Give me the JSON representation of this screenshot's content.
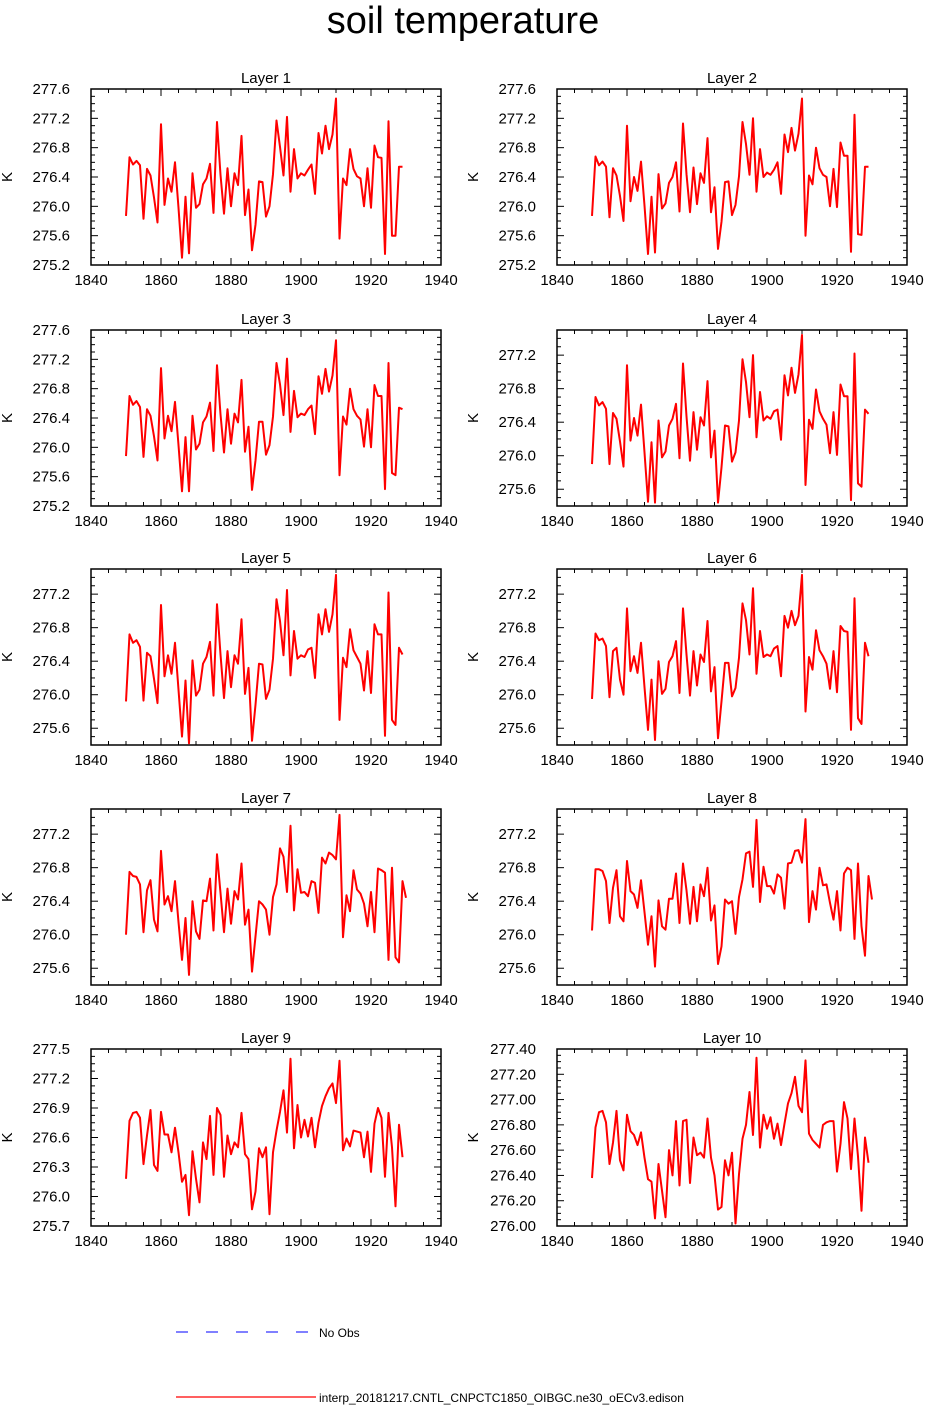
{
  "title": "soil temperature",
  "legend": {
    "obs_label": "No Obs",
    "obs_color": "#0000ff",
    "model_label": "interp_20181217.CNTL_CNPCTC1850_OIBGC.ne30_oECv3.edison",
    "model_color": "#ff0000"
  },
  "chart_data": [
    {
      "type": "line",
      "title": "Layer 1",
      "ylabel": "K",
      "xlim": [
        1840,
        1940
      ],
      "ylim": [
        275.2,
        277.6
      ],
      "xticks": [
        1840,
        1860,
        1880,
        1900,
        1920,
        1940
      ],
      "yticks": [
        "275.2",
        "275.6",
        "276.0",
        "276.4",
        "276.8",
        "277.2",
        "277.6"
      ],
      "x_start": 1850,
      "values": [
        275.87,
        276.67,
        276.57,
        276.62,
        276.56,
        275.83,
        276.51,
        276.42,
        276.12,
        275.78,
        277.12,
        276.02,
        276.38,
        276.2,
        276.6,
        275.98,
        275.3,
        276.13,
        275.36,
        276.45,
        275.98,
        276.03,
        276.3,
        276.38,
        276.58,
        275.91,
        277.15,
        276.43,
        275.9,
        276.52,
        276.0,
        276.45,
        276.29,
        276.96,
        275.88,
        276.23,
        275.4,
        275.75,
        276.34,
        276.33,
        275.86,
        276.0,
        276.44,
        277.17,
        276.81,
        276.42,
        277.22,
        276.2,
        276.78,
        276.38,
        276.45,
        276.42,
        276.5,
        276.57,
        276.17,
        277.0,
        276.72,
        277.1,
        276.78,
        276.98,
        277.47,
        275.56,
        276.38,
        276.29,
        276.78,
        276.51,
        276.41,
        276.38,
        276.0,
        276.52,
        275.98,
        276.83,
        276.67,
        276.66,
        275.35,
        277.16,
        275.6,
        275.6,
        276.54,
        276.54
      ]
    },
    {
      "type": "line",
      "title": "Layer 2",
      "ylabel": "K",
      "xlim": [
        1840,
        1940
      ],
      "ylim": [
        275.2,
        277.6
      ],
      "xticks": [
        1840,
        1860,
        1880,
        1900,
        1920,
        1940
      ],
      "yticks": [
        "275.2",
        "275.6",
        "276.0",
        "276.4",
        "276.8",
        "277.2",
        "277.6"
      ],
      "x_start": 1850,
      "values": [
        275.87,
        276.68,
        276.56,
        276.61,
        276.54,
        275.85,
        276.52,
        276.42,
        276.14,
        275.8,
        277.1,
        276.07,
        276.4,
        276.21,
        276.61,
        276.01,
        275.35,
        276.13,
        275.37,
        276.44,
        275.97,
        276.04,
        276.32,
        276.4,
        276.6,
        275.93,
        277.13,
        276.44,
        275.92,
        276.53,
        276.03,
        276.45,
        276.32,
        276.93,
        275.92,
        276.26,
        275.42,
        275.79,
        276.33,
        276.34,
        275.88,
        276.02,
        276.41,
        277.15,
        276.85,
        276.43,
        277.2,
        276.2,
        276.78,
        276.4,
        276.46,
        276.43,
        276.5,
        276.6,
        276.17,
        276.98,
        276.74,
        277.07,
        276.76,
        276.99,
        277.47,
        275.6,
        276.42,
        276.3,
        276.8,
        276.52,
        276.43,
        276.4,
        276.0,
        276.51,
        275.99,
        276.87,
        276.69,
        276.69,
        275.38,
        277.25,
        275.62,
        275.61,
        276.54,
        276.54
      ]
    },
    {
      "type": "line",
      "title": "Layer 3",
      "ylabel": "K",
      "xlim": [
        1840,
        1940
      ],
      "ylim": [
        275.2,
        277.6
      ],
      "xticks": [
        1840,
        1860,
        1880,
        1900,
        1920,
        1940
      ],
      "yticks": [
        "275.2",
        "275.6",
        "276.0",
        "276.4",
        "276.8",
        "277.2",
        "277.6"
      ],
      "x_start": 1850,
      "values": [
        275.88,
        276.7,
        276.58,
        276.63,
        276.55,
        275.87,
        276.52,
        276.43,
        276.15,
        275.82,
        277.08,
        276.12,
        276.43,
        276.22,
        276.62,
        276.03,
        275.4,
        276.14,
        275.4,
        276.43,
        275.97,
        276.05,
        276.34,
        276.42,
        276.61,
        275.95,
        277.12,
        276.45,
        275.93,
        276.52,
        276.05,
        276.46,
        276.34,
        276.92,
        275.94,
        276.28,
        275.42,
        275.82,
        276.35,
        276.35,
        275.9,
        276.03,
        276.42,
        277.15,
        276.86,
        276.44,
        277.21,
        276.21,
        276.77,
        276.41,
        276.46,
        276.44,
        276.52,
        276.57,
        276.18,
        276.97,
        276.73,
        277.07,
        276.76,
        276.98,
        277.46,
        275.62,
        276.42,
        276.31,
        276.8,
        276.52,
        276.43,
        276.38,
        276.01,
        276.52,
        276.0,
        276.85,
        276.7,
        276.7,
        275.43,
        277.15,
        275.65,
        275.62,
        276.54,
        276.52
      ]
    },
    {
      "type": "line",
      "title": "Layer 4",
      "ylabel": "K",
      "xlim": [
        1840,
        1940
      ],
      "ylim": [
        275.4,
        277.5
      ],
      "xticks": [
        1840,
        1860,
        1880,
        1900,
        1920,
        1940
      ],
      "yticks": [
        "275.6",
        "276.0",
        "276.4",
        "276.8",
        "277.2"
      ],
      "x_start": 1850,
      "values": [
        275.9,
        276.7,
        276.6,
        276.64,
        276.56,
        275.9,
        276.51,
        276.44,
        276.17,
        275.87,
        277.08,
        276.18,
        276.45,
        276.24,
        276.61,
        276.04,
        275.45,
        276.16,
        275.44,
        276.42,
        275.98,
        276.05,
        276.36,
        276.44,
        276.62,
        275.97,
        277.1,
        276.47,
        275.94,
        276.52,
        276.07,
        276.46,
        276.36,
        276.89,
        275.98,
        276.3,
        275.44,
        275.86,
        276.36,
        276.35,
        275.93,
        276.04,
        276.42,
        277.15,
        276.88,
        276.46,
        277.2,
        276.22,
        276.76,
        276.42,
        276.47,
        276.44,
        276.53,
        276.55,
        276.19,
        276.96,
        276.72,
        277.05,
        276.75,
        276.97,
        277.44,
        275.65,
        276.43,
        276.32,
        276.79,
        276.53,
        276.44,
        276.37,
        276.03,
        276.52,
        276.01,
        276.85,
        276.71,
        276.71,
        275.47,
        277.22,
        275.67,
        275.63,
        276.55,
        276.5
      ]
    },
    {
      "type": "line",
      "title": "Layer 5",
      "ylabel": "K",
      "xlim": [
        1840,
        1940
      ],
      "ylim": [
        275.4,
        277.5
      ],
      "xticks": [
        1840,
        1860,
        1880,
        1900,
        1920,
        1940
      ],
      "yticks": [
        "275.6",
        "276.0",
        "276.4",
        "276.8",
        "277.2"
      ],
      "x_start": 1850,
      "values": [
        275.92,
        276.72,
        276.62,
        276.65,
        276.57,
        275.93,
        276.5,
        276.46,
        276.19,
        275.9,
        277.07,
        276.22,
        276.47,
        276.25,
        276.62,
        276.06,
        275.5,
        276.17,
        275.42,
        276.41,
        275.99,
        276.06,
        276.37,
        276.45,
        276.63,
        275.99,
        277.08,
        276.48,
        275.96,
        276.52,
        276.09,
        276.47,
        276.37,
        276.9,
        276.01,
        276.32,
        275.45,
        275.88,
        276.37,
        276.36,
        275.95,
        276.06,
        276.43,
        277.14,
        276.88,
        276.47,
        277.25,
        276.23,
        276.76,
        276.43,
        276.47,
        276.45,
        276.54,
        276.56,
        276.2,
        276.96,
        276.72,
        277.02,
        276.75,
        276.96,
        277.43,
        275.7,
        276.44,
        276.33,
        276.78,
        276.53,
        276.45,
        276.37,
        276.05,
        276.52,
        276.02,
        276.84,
        276.72,
        276.72,
        275.51,
        277.22,
        275.7,
        275.64,
        276.56,
        276.48
      ]
    },
    {
      "type": "line",
      "title": "Layer 6",
      "ylabel": "K",
      "xlim": [
        1840,
        1940
      ],
      "ylim": [
        275.4,
        277.5
      ],
      "xticks": [
        1840,
        1860,
        1880,
        1900,
        1920,
        1940
      ],
      "yticks": [
        "275.6",
        "276.0",
        "276.4",
        "276.8",
        "277.2"
      ],
      "x_start": 1850,
      "values": [
        275.95,
        276.73,
        276.65,
        276.67,
        276.58,
        275.97,
        276.52,
        276.56,
        276.18,
        276.0,
        277.03,
        276.28,
        276.46,
        276.26,
        276.62,
        276.09,
        275.58,
        276.18,
        275.46,
        276.4,
        276.01,
        276.07,
        276.39,
        276.46,
        276.64,
        276.02,
        277.03,
        276.48,
        275.99,
        276.52,
        276.11,
        276.48,
        276.39,
        276.88,
        276.04,
        276.33,
        275.48,
        275.92,
        276.38,
        276.38,
        275.98,
        276.08,
        276.44,
        277.09,
        276.89,
        276.48,
        277.27,
        276.25,
        276.76,
        276.45,
        276.48,
        276.46,
        276.55,
        276.58,
        276.22,
        276.94,
        276.8,
        277.0,
        276.83,
        276.94,
        277.43,
        275.8,
        276.45,
        276.3,
        276.77,
        276.53,
        276.46,
        276.37,
        276.07,
        276.52,
        276.03,
        276.82,
        276.76,
        276.75,
        275.58,
        277.15,
        275.72,
        275.65,
        276.62,
        276.46
      ]
    },
    {
      "type": "line",
      "title": "Layer 7",
      "ylabel": "K",
      "xlim": [
        1840,
        1940
      ],
      "ylim": [
        275.4,
        277.5
      ],
      "xticks": [
        1840,
        1860,
        1880,
        1900,
        1920,
        1940
      ],
      "yticks": [
        "275.6",
        "276.0",
        "276.4",
        "276.8",
        "277.2"
      ],
      "x_start": 1850,
      "values": [
        276.0,
        276.75,
        276.7,
        276.69,
        276.6,
        276.03,
        276.53,
        276.65,
        276.18,
        276.04,
        277.0,
        276.36,
        276.46,
        276.28,
        276.64,
        276.15,
        275.7,
        276.2,
        275.52,
        276.4,
        276.04,
        275.95,
        276.41,
        276.4,
        276.67,
        276.05,
        276.96,
        276.5,
        276.03,
        276.55,
        276.13,
        276.52,
        276.42,
        276.85,
        276.12,
        276.3,
        275.56,
        275.98,
        276.4,
        276.36,
        276.3,
        276.0,
        276.45,
        276.6,
        277.03,
        276.93,
        276.51,
        277.3,
        276.29,
        276.78,
        276.5,
        276.51,
        276.46,
        276.64,
        276.62,
        276.26,
        276.92,
        276.85,
        276.98,
        276.95,
        276.9,
        277.43,
        275.97,
        276.47,
        276.28,
        276.77,
        276.54,
        276.49,
        276.37,
        276.1,
        276.51,
        276.03,
        276.79,
        276.77,
        276.74,
        275.7,
        276.8,
        275.73,
        275.67,
        276.64,
        276.44
      ]
    },
    {
      "type": "line",
      "title": "Layer 8",
      "ylabel": "K",
      "xlim": [
        1840,
        1940
      ],
      "ylim": [
        275.4,
        277.5
      ],
      "xticks": [
        1840,
        1860,
        1880,
        1900,
        1920,
        1940
      ],
      "yticks": [
        "275.6",
        "276.0",
        "276.4",
        "276.8",
        "277.2"
      ],
      "x_start": 1850,
      "values": [
        276.05,
        276.78,
        276.78,
        276.76,
        276.64,
        276.14,
        276.56,
        276.77,
        276.22,
        276.16,
        276.88,
        276.52,
        276.48,
        276.32,
        276.65,
        276.27,
        275.88,
        276.22,
        275.62,
        276.41,
        276.1,
        276.06,
        276.43,
        276.43,
        276.73,
        276.14,
        276.85,
        276.53,
        276.13,
        276.57,
        276.16,
        276.6,
        276.46,
        276.8,
        276.17,
        276.35,
        275.65,
        275.86,
        276.42,
        276.37,
        276.4,
        276.01,
        276.45,
        276.66,
        276.97,
        276.99,
        276.57,
        277.37,
        276.39,
        276.81,
        276.58,
        276.58,
        276.49,
        276.72,
        276.68,
        276.31,
        276.85,
        276.86,
        277.0,
        277.01,
        276.86,
        277.38,
        276.15,
        276.52,
        276.3,
        276.8,
        276.59,
        276.6,
        276.38,
        276.18,
        276.52,
        276.05,
        276.73,
        276.8,
        276.77,
        275.95,
        276.85,
        276.1,
        275.75,
        276.7,
        276.42
      ]
    },
    {
      "type": "line",
      "title": "Layer 9",
      "ylabel": "K",
      "xlim": [
        1840,
        1940
      ],
      "ylim": [
        275.7,
        277.5
      ],
      "xticks": [
        1840,
        1860,
        1880,
        1900,
        1920,
        1940
      ],
      "yticks": [
        "275.7",
        "276.0",
        "276.3",
        "276.6",
        "276.9",
        "277.2",
        "277.5"
      ],
      "x_start": 1850,
      "values": [
        276.18,
        276.77,
        276.85,
        276.86,
        276.8,
        276.33,
        276.62,
        276.88,
        276.32,
        276.26,
        276.86,
        276.63,
        276.63,
        276.45,
        276.7,
        276.45,
        276.15,
        276.22,
        275.81,
        276.46,
        276.18,
        275.94,
        276.55,
        276.38,
        276.82,
        276.22,
        276.9,
        276.83,
        276.2,
        276.62,
        276.43,
        276.55,
        276.5,
        276.85,
        276.43,
        276.38,
        275.87,
        276.05,
        276.49,
        276.4,
        276.5,
        275.82,
        276.45,
        276.67,
        276.86,
        277.08,
        276.65,
        277.4,
        276.49,
        276.93,
        276.6,
        276.78,
        276.61,
        276.8,
        276.5,
        276.75,
        276.92,
        277.02,
        277.1,
        277.15,
        276.95,
        277.38,
        276.47,
        276.59,
        276.51,
        276.67,
        276.66,
        276.65,
        276.4,
        276.66,
        276.25,
        276.74,
        276.9,
        276.8,
        276.2,
        276.85,
        276.5,
        275.9,
        276.73,
        276.4
      ]
    },
    {
      "type": "line",
      "title": "Layer 10",
      "ylabel": "K",
      "xlim": [
        1840,
        1940
      ],
      "ylim": [
        276.0,
        277.4
      ],
      "xticks": [
        1840,
        1860,
        1880,
        1900,
        1920,
        1940
      ],
      "yticks": [
        "276.00",
        "276.20",
        "276.40",
        "276.60",
        "276.80",
        "277.00",
        "277.20",
        "277.40"
      ],
      "x_start": 1850,
      "values": [
        276.38,
        276.78,
        276.9,
        276.91,
        276.82,
        276.49,
        276.66,
        276.91,
        276.52,
        276.44,
        276.88,
        276.75,
        276.72,
        276.64,
        276.74,
        276.54,
        276.37,
        276.35,
        276.06,
        276.49,
        276.28,
        276.07,
        276.6,
        276.4,
        276.83,
        276.32,
        276.83,
        276.84,
        276.34,
        276.7,
        276.56,
        276.58,
        276.54,
        276.85,
        276.54,
        276.4,
        276.13,
        276.15,
        276.52,
        276.4,
        276.58,
        276.02,
        276.41,
        276.69,
        276.8,
        277.06,
        276.72,
        277.33,
        276.62,
        276.88,
        276.77,
        276.86,
        276.69,
        276.81,
        276.64,
        276.81,
        276.97,
        277.05,
        277.18,
        276.95,
        276.9,
        277.31,
        276.73,
        276.68,
        276.65,
        276.62,
        276.8,
        276.82,
        276.83,
        276.83,
        276.43,
        276.65,
        276.98,
        276.85,
        276.45,
        276.85,
        276.55,
        276.12,
        276.7,
        276.5
      ]
    }
  ]
}
